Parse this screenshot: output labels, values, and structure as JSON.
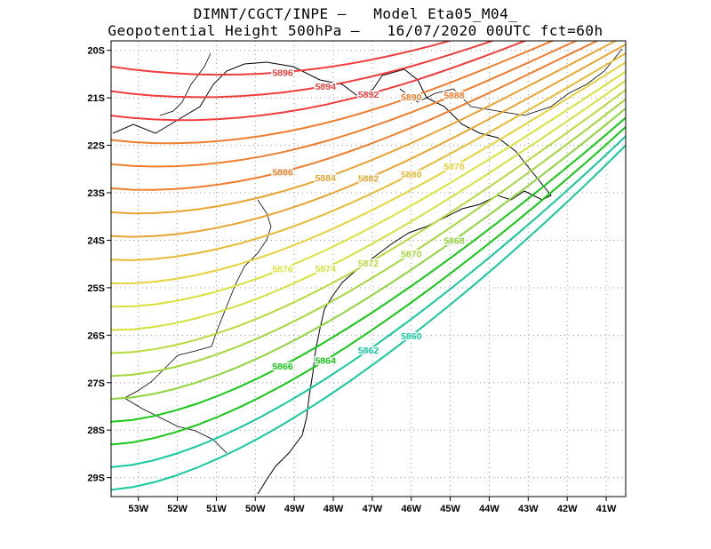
{
  "title_line1": "DIMNT/CGCT/INPE –   Model Eta05_M04_",
  "title_line2": "Geopotential Height 500hPa –   16/07/2020 00UTC fct=60h",
  "map": {
    "lon_range": [
      -53.7,
      -40.5
    ],
    "lat_range": [
      -29.4,
      -19.8
    ],
    "lon_ticks": [
      -53,
      -52,
      -51,
      -50,
      -49,
      -48,
      -47,
      -46,
      -45,
      -44,
      -43,
      -42,
      -41
    ],
    "lat_ticks": [
      -20,
      -21,
      -22,
      -23,
      -24,
      -25,
      -26,
      -27,
      -28,
      -29
    ],
    "lon_tick_labels": [
      "53W",
      "52W",
      "51W",
      "50W",
      "49W",
      "48W",
      "47W",
      "46W",
      "45W",
      "44W",
      "43W",
      "42W",
      "41W"
    ],
    "lat_tick_labels": [
      "20S",
      "21S",
      "22S",
      "23S",
      "24S",
      "25S",
      "26S",
      "27S",
      "28S",
      "29S"
    ],
    "grid": "dotted"
  },
  "contours": [
    {
      "value": 5896,
      "label": "5896",
      "color": "#f03c3c"
    },
    {
      "value": 5894,
      "label": "5894",
      "color": "#f03c3c"
    },
    {
      "value": 5892,
      "label": "5892",
      "color": "#f03c3c"
    },
    {
      "value": 5890,
      "label": "5890",
      "color": "#ee7d2e"
    },
    {
      "value": 5888,
      "label": "5888",
      "color": "#ee7d2e"
    },
    {
      "value": 5886,
      "label": "5886",
      "color": "#ee7d2e"
    },
    {
      "value": 5884,
      "label": "5884",
      "color": "#e8a431"
    },
    {
      "value": 5882,
      "label": "5882",
      "color": "#e8a431"
    },
    {
      "value": 5880,
      "label": "5880",
      "color": "#e6bb34"
    },
    {
      "value": 5878,
      "label": "5878",
      "color": "#e6d23a"
    },
    {
      "value": 5876,
      "label": "5876",
      "color": "#dce13a"
    },
    {
      "value": 5874,
      "label": "5874",
      "color": "#d4e03c"
    },
    {
      "value": 5872,
      "label": "5872",
      "color": "#b4dc3c"
    },
    {
      "value": 5870,
      "label": "5870",
      "color": "#a2d83c"
    },
    {
      "value": 5868,
      "label": "5868",
      "color": "#8ed43c"
    },
    {
      "value": 5866,
      "label": "5866",
      "color": "#14c814"
    },
    {
      "value": 5864,
      "label": "5864",
      "color": "#14c814"
    },
    {
      "value": 5862,
      "label": "5862",
      "color": "#14c8a0"
    },
    {
      "value": 5860,
      "label": "5860",
      "color": "#14c8a0"
    }
  ]
}
